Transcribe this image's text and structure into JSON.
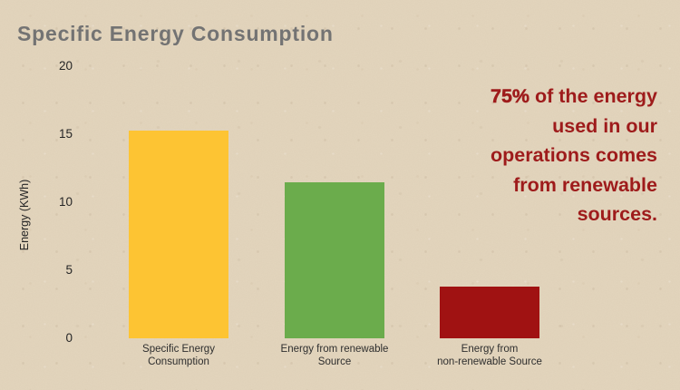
{
  "page": {
    "bg_color": "#E3D5BD"
  },
  "title": {
    "text": "Specific Energy Consumption",
    "color": "#737373"
  },
  "annotation": {
    "color": "#9E1B1B",
    "line1_bold": "75%",
    "line1_rest": " of the energy",
    "lines_rest": [
      "used in our",
      "operations comes",
      "from renewable",
      "sources."
    ]
  },
  "chart_data": {
    "type": "bar",
    "title": "Specific Energy Consumption",
    "xlabel": "",
    "ylabel": "Energy (KWh)",
    "ylim": [
      0,
      20
    ],
    "yticks": [
      0,
      5,
      10,
      15,
      20
    ],
    "grid": false,
    "legend": false,
    "categories": [
      [
        "Specific Energy",
        "Consumption"
      ],
      [
        "Energy from renewable",
        "Source"
      ],
      [
        "Energy from",
        "non-renewable Source"
      ]
    ],
    "values": [
      15.3,
      11.5,
      3.8
    ],
    "bar_colors": [
      "#FDC433",
      "#6BAC4C",
      "#A01212"
    ]
  },
  "colors": {
    "background": "#E3D5BD",
    "title_gray": "#737373",
    "annotation_red": "#9E1B1B",
    "axis_text": "#262626",
    "bar_yellow": "#FDC433",
    "bar_green": "#6BAC4C",
    "bar_dark_red": "#A01212"
  }
}
